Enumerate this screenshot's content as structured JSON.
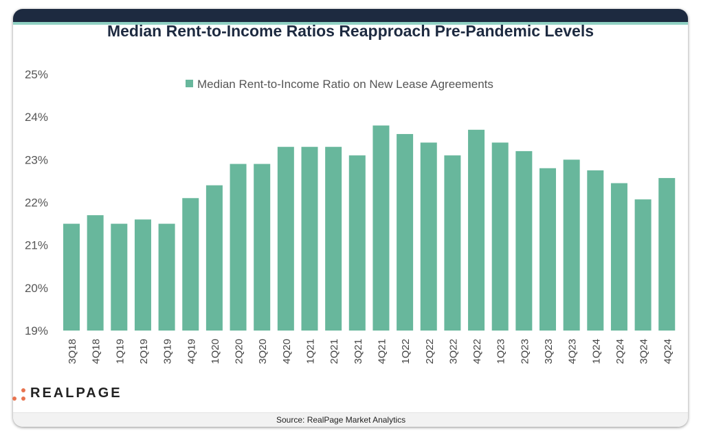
{
  "header": {
    "title": "Median Rent-to-Income Ratios Reapproach Pre-Pandemic Levels"
  },
  "footer": {
    "source": "Source: RealPage Market Analytics",
    "logo_text": "REALPAGE"
  },
  "colors": {
    "bar": "#68b79c",
    "header": "#1d2a40",
    "accent": "#8fd1c3",
    "logo_dots": "#e8734f"
  },
  "chart_data": {
    "type": "bar",
    "title": "Median Rent-to-Income Ratios Reapproach Pre-Pandemic Levels",
    "legend": {
      "entries": [
        "Median Rent-to-Income Ratio on New Lease Agreements"
      ],
      "placement": "top-center"
    },
    "categories": [
      "3Q18",
      "4Q18",
      "1Q19",
      "2Q19",
      "3Q19",
      "4Q19",
      "1Q20",
      "2Q20",
      "3Q20",
      "4Q20",
      "1Q21",
      "2Q21",
      "3Q21",
      "4Q21",
      "1Q22",
      "2Q22",
      "3Q22",
      "4Q22",
      "1Q23",
      "2Q23",
      "3Q23",
      "4Q23",
      "1Q24",
      "2Q24",
      "3Q24",
      "4Q24"
    ],
    "series": [
      {
        "name": "Median Rent-to-Income Ratio on New Lease Agreements",
        "values": [
          21.5,
          21.7,
          21.5,
          21.6,
          21.5,
          22.1,
          22.4,
          22.9,
          22.9,
          23.3,
          23.3,
          23.3,
          23.1,
          23.8,
          23.6,
          23.4,
          23.1,
          23.7,
          23.4,
          23.2,
          22.8,
          23.0,
          22.75,
          22.45,
          22.07,
          22.57
        ]
      }
    ],
    "ylim": [
      19,
      25
    ],
    "yticks": [
      "19%",
      "20%",
      "21%",
      "22%",
      "23%",
      "24%",
      "25%"
    ],
    "grid": false
  }
}
